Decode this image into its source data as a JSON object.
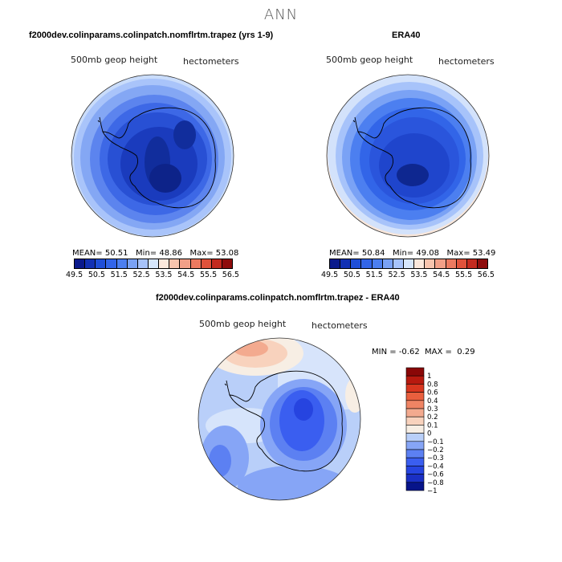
{
  "main_title": "ANN",
  "panels": [
    {
      "title": "f2000dev.colinparams.colinpatch.nomflrtm.trapez (yrs 1-9)",
      "variable": "500mb geop height",
      "units": "hectometers",
      "stats": {
        "mean_label": "MEAN=",
        "mean": "50.51",
        "min_label": "Min=",
        "min": "48.86",
        "max_label": "Max=",
        "max": "53.08"
      }
    },
    {
      "title": "ERA40",
      "variable": "500mb geop height",
      "units": "hectometers",
      "stats": {
        "mean_label": "MEAN=",
        "mean": "50.84",
        "min_label": "Min=",
        "min": "49.08",
        "max_label": "Max=",
        "max": "53.49"
      }
    },
    {
      "title": "f2000dev.colinparams.colinpatch.nomflrtm.trapez - ERA40",
      "variable": "500mb geop height",
      "units": "hectometers",
      "stats": {
        "min_label": "MIN =",
        "min": "-0.62",
        "max_label": "MAX =",
        "max": "0.29"
      }
    }
  ],
  "chart_data": [
    {
      "type": "heatmap",
      "projection": "south-polar-stereographic",
      "title": "f2000dev.colinparams.colinpatch.nomflrtm.trapez (yrs 1-9)",
      "field": "500mb geop height",
      "units": "hectometers",
      "mean": 50.51,
      "min": 48.86,
      "max": 53.08,
      "contour_levels": [
        49.5,
        50,
        50.5,
        51,
        51.5,
        52,
        52.5,
        53,
        53.5,
        54,
        54.5,
        55,
        55.5,
        56,
        56.5
      ],
      "colorbar_tick_labels": [
        "49.5",
        "50.5",
        "51.5",
        "52.5",
        "53.5",
        "54.5",
        "55.5",
        "56.5"
      ]
    },
    {
      "type": "heatmap",
      "projection": "south-polar-stereographic",
      "title": "ERA40",
      "field": "500mb geop height",
      "units": "hectometers",
      "mean": 50.84,
      "min": 49.08,
      "max": 53.49,
      "contour_levels": [
        49.5,
        50,
        50.5,
        51,
        51.5,
        52,
        52.5,
        53,
        53.5,
        54,
        54.5,
        55,
        55.5,
        56,
        56.5
      ],
      "colorbar_tick_labels": [
        "49.5",
        "50.5",
        "51.5",
        "52.5",
        "53.5",
        "54.5",
        "55.5",
        "56.5"
      ]
    },
    {
      "type": "heatmap",
      "projection": "south-polar-stereographic",
      "title": "f2000dev.colinparams.colinpatch.nomflrtm.trapez - ERA40",
      "field": "500mb geop height difference",
      "units": "hectometers",
      "min": -0.62,
      "max": 0.29,
      "contour_levels": [
        -1,
        -0.8,
        -0.6,
        -0.4,
        -0.3,
        -0.2,
        -0.1,
        0,
        0.1,
        0.2,
        0.3,
        0.4,
        0.6,
        0.8,
        1
      ],
      "colorbar_tick_labels": [
        "1",
        "0.8",
        "0.6",
        "0.4",
        "0.3",
        "0.2",
        "0.1",
        "0",
        "−0.1",
        "−0.2",
        "−0.3",
        "−0.4",
        "−0.6",
        "−0.8",
        "−1"
      ]
    }
  ],
  "colors": {
    "abs_scale": [
      "#0a1a8c",
      "#1231b4",
      "#1f4fd8",
      "#3265e8",
      "#4c7ff0",
      "#7aa2f5",
      "#a7c3fa",
      "#d6e6fc",
      "#fbe8dc",
      "#f7c4ae",
      "#f2a088",
      "#ec7a60",
      "#e0523b",
      "#c42a1f",
      "#8e0c0c"
    ],
    "diff_scale": [
      "#07148a",
      "#1a2fc4",
      "#2644e0",
      "#3a5ef0",
      "#5c80f2",
      "#86a5f6",
      "#b9cff9",
      "#f7eee4",
      "#f8d2bd",
      "#f3aa8f",
      "#ef8464",
      "#e95f3e",
      "#d9361f",
      "#b8190f",
      "#8a0707"
    ],
    "coast": "#000000"
  }
}
